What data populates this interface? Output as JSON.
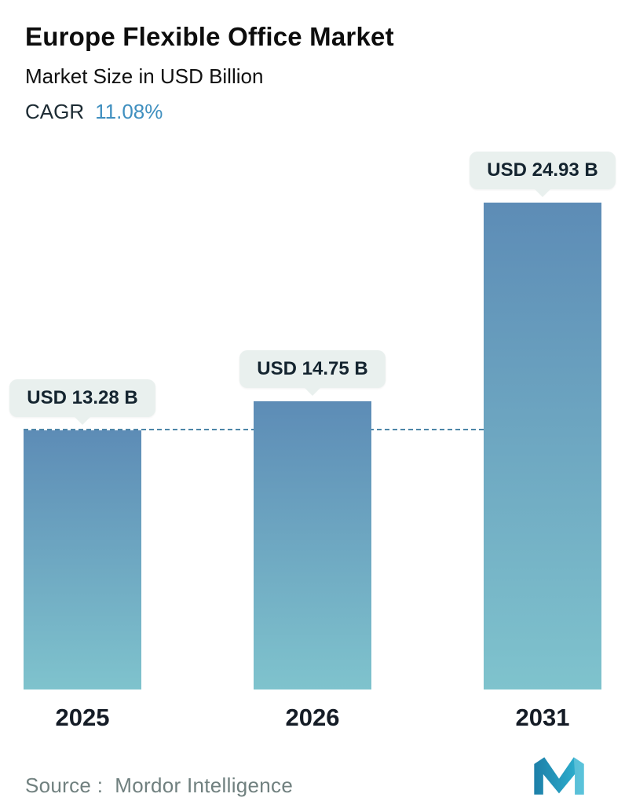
{
  "header": {
    "title": "Europe Flexible Office Market",
    "subtitle": "Market Size in USD Billion",
    "cagr_label": "CAGR",
    "cagr_value": "11.08%"
  },
  "chart_data": {
    "type": "bar",
    "title": "Europe Flexible Office Market",
    "subtitle": "Market Size in USD Billion",
    "cagr": "11.08%",
    "categories": [
      "2025",
      "2026",
      "2031"
    ],
    "values": [
      13.28,
      14.75,
      24.93
    ],
    "value_labels": [
      "USD 13.28 B",
      "USD 14.75 B",
      "USD 24.93 B"
    ],
    "unit": "USD Billion",
    "ylim": [
      0,
      24.93
    ],
    "grid": false,
    "legend": "none",
    "reference_line_value": 13.28,
    "reference_line_style": "dashed",
    "colors": {
      "bar_gradient_top": "#5d8cb6",
      "bar_gradient_bottom": "#7fc3cd",
      "reference_line": "#4d86a8",
      "cagr_accent": "#3f8fbf",
      "label_pill_bg": "#e9f0ee"
    }
  },
  "footer": {
    "source_label": "Source :",
    "source_value": "Mordor Intelligence",
    "logo": "mordor-intelligence-logo"
  }
}
